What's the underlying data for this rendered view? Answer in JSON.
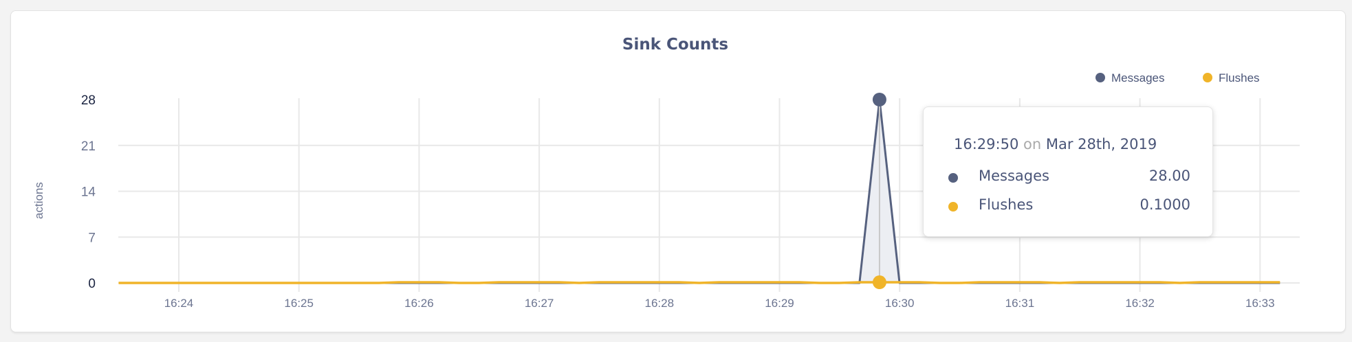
{
  "chart_data": {
    "type": "area",
    "title": "Sink Counts",
    "ylabel": "actions",
    "xlabel": "",
    "ylim": [
      0,
      28
    ],
    "yticks": [
      "0",
      "7",
      "14",
      "21",
      "28"
    ],
    "xticks": [
      "16:24",
      "16:25",
      "16:26",
      "16:27",
      "16:28",
      "16:29",
      "16:30",
      "16:31",
      "16:32",
      "16:33"
    ],
    "x_start": "16:23:30",
    "x_interval_seconds": 10,
    "grid": true,
    "legend_position": "top-right",
    "series": [
      {
        "name": "Messages",
        "color": "#56617f",
        "values": [
          0,
          0,
          0,
          0,
          0,
          0,
          0,
          0,
          0,
          0,
          0,
          0,
          0,
          0,
          0,
          0,
          0,
          0,
          0,
          0,
          0,
          0,
          0,
          0,
          0,
          0,
          0,
          0,
          0,
          0,
          0,
          0,
          0,
          0,
          0,
          0,
          0,
          0,
          28,
          0,
          0,
          0,
          0,
          0,
          0,
          0,
          0,
          0,
          0,
          0,
          0,
          0,
          0,
          0,
          0,
          0,
          0,
          0,
          0
        ]
      },
      {
        "name": "Flushes",
        "color": "#f0b429",
        "values": [
          0,
          0,
          0,
          0,
          0,
          0,
          0,
          0,
          0,
          0,
          0,
          0,
          0,
          0,
          0.1,
          0.1,
          0.1,
          0,
          0,
          0.1,
          0.1,
          0.1,
          0.1,
          0,
          0.1,
          0.1,
          0.1,
          0.1,
          0.1,
          0,
          0.1,
          0.1,
          0.1,
          0.1,
          0.1,
          0,
          0,
          0.1,
          0.1,
          0.1,
          0.1,
          0,
          0,
          0.1,
          0.1,
          0.1,
          0.1,
          0,
          0.1,
          0.1,
          0.1,
          0.1,
          0.1,
          0,
          0.1,
          0.1,
          0.1,
          0.1,
          0.1
        ]
      }
    ]
  },
  "tooltip": {
    "time": "16:29:50",
    "on": "on",
    "date": "Mar 28th, 2019",
    "rows": [
      {
        "label": "Messages",
        "value": "28.00",
        "color": "#56617f"
      },
      {
        "label": "Flushes",
        "value": "0.1000",
        "color": "#f0b429"
      }
    ]
  },
  "highlight_index": 38
}
